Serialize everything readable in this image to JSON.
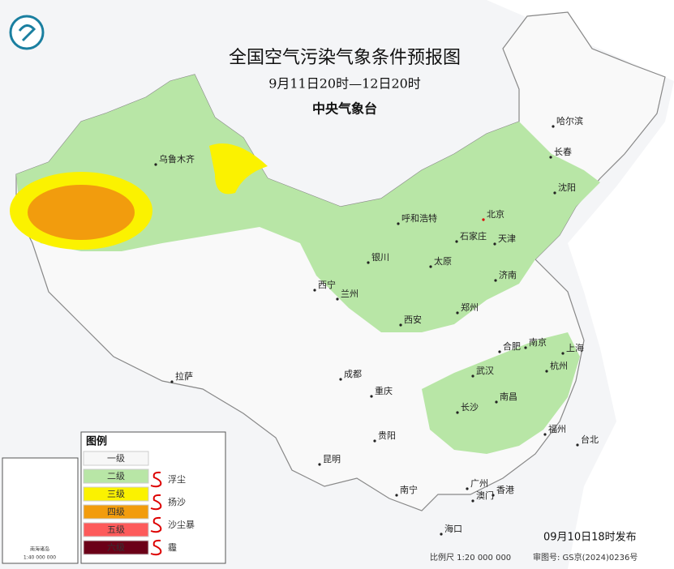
{
  "header": {
    "title": "全国空气污染气象条件预报图",
    "subtitle": "9月11日20时—12日20时",
    "issuer": "中央气象台"
  },
  "cities": [
    "北京",
    "天津",
    "呼和浩特",
    "石家庄",
    "太原",
    "银川",
    "西宁",
    "兰州",
    "济南",
    "郑州",
    "西安",
    "合肥",
    "南京",
    "上海",
    "杭州",
    "武汉",
    "长沙",
    "南昌",
    "福州",
    "台北",
    "成都",
    "重庆",
    "贵阳",
    "昆明",
    "南宁",
    "广州",
    "澳门",
    "香港",
    "海口",
    "拉萨",
    "乌鲁木齐",
    "哈尔滨",
    "长春",
    "沈阳"
  ],
  "legend": {
    "title": "图例",
    "levels": [
      "一级",
      "二级",
      "三级",
      "四级",
      "五级",
      "六级"
    ],
    "symbols": [
      "浮尘",
      "扬沙",
      "沙尘暴",
      "霾"
    ]
  },
  "inset": {
    "label": "南海诸岛",
    "scale": "1:40 000 000"
  },
  "footer": {
    "issued": "09月10日18时发布",
    "scale": "比例尺 1:20 000 000",
    "map_number": "审图号: GS京(2024)0236号"
  }
}
